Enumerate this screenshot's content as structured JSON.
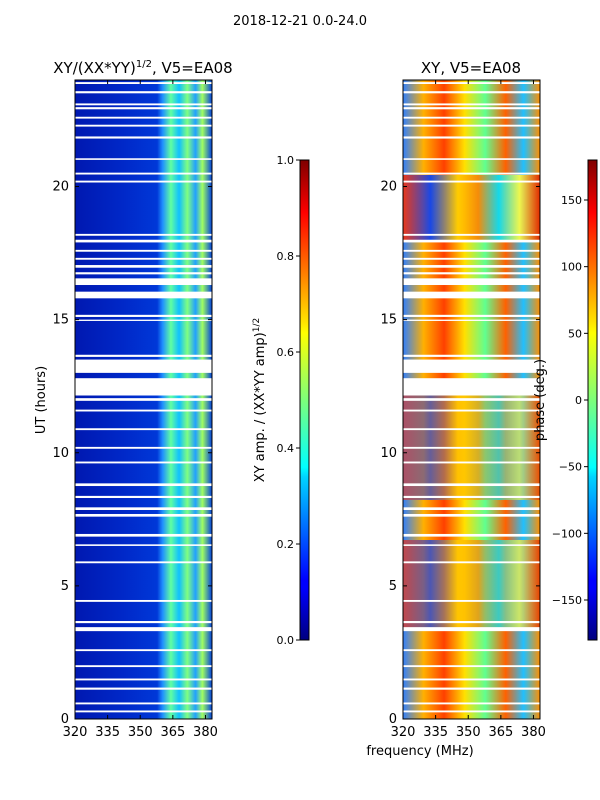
{
  "suptitle": "2018-12-21 0.0-24.0",
  "chart_data": [
    {
      "type": "heatmap",
      "title_main": "XY/(XX*YY)",
      "title_sup": "1/2",
      "title_tail": ", V5=EA08",
      "ylabel": "UT (hours)",
      "xlim": [
        320,
        383
      ],
      "ylim": [
        0,
        24
      ],
      "xticks": [
        "320",
        "335",
        "350",
        "365",
        "380"
      ],
      "yticks": [
        "0",
        "5",
        "10",
        "15",
        "20"
      ],
      "colorbar": {
        "label_main": "XY amp. / (XX*YY amp)",
        "label_sup": "1/2",
        "range": [
          0.0,
          1.0
        ],
        "ticks": [
          "0.0",
          "0.2",
          "0.4",
          "0.6",
          "0.8",
          "1.0"
        ]
      }
    },
    {
      "type": "heatmap",
      "title": "XY, V5=EA08",
      "xlabel": "frequency (MHz)",
      "xlim": [
        320,
        383
      ],
      "ylim": [
        0,
        24
      ],
      "xticks": [
        "320",
        "335",
        "350",
        "365",
        "380"
      ],
      "yticks": [
        "0",
        "5",
        "10",
        "15",
        "20"
      ],
      "colorbar": {
        "label": "phase (deg.)",
        "range": [
          -180,
          180
        ],
        "ticks": [
          "−150",
          "−100",
          "−50",
          "0",
          "50",
          "100",
          "150"
        ]
      }
    }
  ],
  "flag_gaps_hours": [
    [
      0.25,
      0.32
    ],
    [
      0.55,
      0.62
    ],
    [
      1.1,
      1.18
    ],
    [
      1.45,
      1.52
    ],
    [
      1.95,
      2.02
    ],
    [
      2.55,
      2.62
    ],
    [
      3.3,
      3.45
    ],
    [
      3.6,
      3.68
    ],
    [
      4.4,
      4.47
    ],
    [
      5.85,
      5.92
    ],
    [
      6.5,
      6.56
    ],
    [
      6.85,
      6.95
    ],
    [
      7.6,
      7.7
    ],
    [
      7.85,
      7.95
    ],
    [
      8.3,
      8.38
    ],
    [
      8.75,
      8.85
    ],
    [
      9.6,
      9.67
    ],
    [
      10.15,
      10.22
    ],
    [
      10.85,
      10.92
    ],
    [
      11.55,
      11.62
    ],
    [
      11.95,
      12.05
    ],
    [
      12.15,
      12.8
    ],
    [
      13.0,
      13.5
    ],
    [
      13.6,
      13.68
    ],
    [
      14.95,
      15.0
    ],
    [
      15.1,
      15.18
    ],
    [
      15.8,
      16.05
    ],
    [
      16.3,
      16.55
    ],
    [
      16.7,
      16.78
    ],
    [
      16.95,
      17.05
    ],
    [
      17.25,
      17.32
    ],
    [
      17.55,
      17.62
    ],
    [
      17.9,
      18.0
    ],
    [
      18.15,
      18.22
    ],
    [
      20.15,
      20.22
    ],
    [
      20.45,
      20.52
    ],
    [
      21.0,
      21.06
    ],
    [
      21.8,
      21.88
    ],
    [
      22.25,
      22.32
    ],
    [
      22.55,
      22.62
    ],
    [
      22.9,
      22.98
    ],
    [
      23.05,
      23.12
    ],
    [
      23.5,
      23.58
    ],
    [
      23.85,
      23.92
    ]
  ]
}
